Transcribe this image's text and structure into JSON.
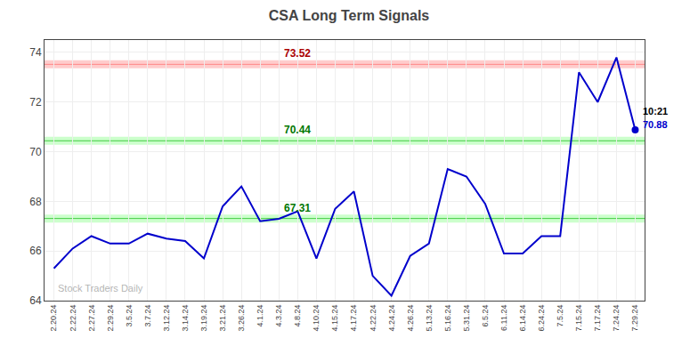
{
  "chart_data": {
    "type": "line",
    "title": "CSA Long Term Signals",
    "watermark": "Stock Traders Daily",
    "categories": [
      "2.20.24",
      "2.22.24",
      "2.27.24",
      "2.29.24",
      "3.5.24",
      "3.7.24",
      "3.12.24",
      "3.14.24",
      "3.19.24",
      "3.21.24",
      "3.26.24",
      "4.1.24",
      "4.3.24",
      "4.8.24",
      "4.10.24",
      "4.15.24",
      "4.17.24",
      "4.22.24",
      "4.24.24",
      "4.26.24",
      "5.13.24",
      "5.16.24",
      "5.31.24",
      "6.5.24",
      "6.11.24",
      "6.14.24",
      "6.24.24",
      "7.5.24",
      "7.15.24",
      "7.17.24",
      "7.24.24",
      "7.29.24"
    ],
    "values": [
      65.3,
      66.1,
      66.6,
      66.3,
      66.3,
      66.7,
      66.5,
      66.4,
      65.7,
      67.8,
      68.6,
      67.2,
      67.3,
      67.6,
      65.7,
      67.7,
      68.4,
      65.0,
      64.2,
      65.8,
      66.3,
      69.3,
      69.0,
      67.9,
      65.9,
      65.9,
      66.6,
      66.6,
      73.2,
      72.0,
      73.8,
      70.88
    ],
    "color": "#0000cc",
    "hlines": [
      {
        "value": 73.52,
        "label": "73.52",
        "x": "4.8.24",
        "color": "#ff8888",
        "fill_color": "#ffcccc",
        "label_color": "#aa0000"
      },
      {
        "value": 70.44,
        "label": "70.44",
        "x": "4.8.24",
        "color": "#44cc44",
        "fill_color": "#ccffcc",
        "label_color": "#007700"
      },
      {
        "value": 67.31,
        "label": "67.31",
        "x": "4.8.24",
        "color": "#44cc44",
        "fill_color": "#ccffcc",
        "label_color": "#007700"
      }
    ],
    "annotations": [
      {
        "text": "10:21",
        "x": "7.29.24",
        "y": 70.88,
        "color": "#000000"
      },
      {
        "text": "70.88",
        "x": "7.29.24",
        "y": 70.88,
        "color": "#0000cc"
      }
    ],
    "ylim": [
      64.0,
      74.5
    ],
    "yticks": [
      64,
      66,
      68,
      70,
      72,
      74
    ],
    "grid": true
  }
}
